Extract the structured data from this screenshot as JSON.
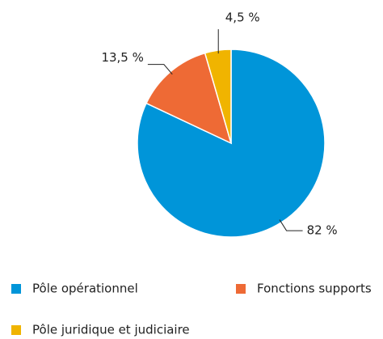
{
  "chart_data": {
    "type": "pie",
    "categories": [
      "Pôle opérationnel",
      "Fonctions supports",
      "Pôle juridique et judiciaire"
    ],
    "values": [
      82,
      13.5,
      4.5
    ],
    "value_labels": [
      "82 %",
      "13,5 %",
      "4,5 %"
    ],
    "colors": [
      "#0095d9",
      "#ee6a35",
      "#f0b400"
    ]
  }
}
